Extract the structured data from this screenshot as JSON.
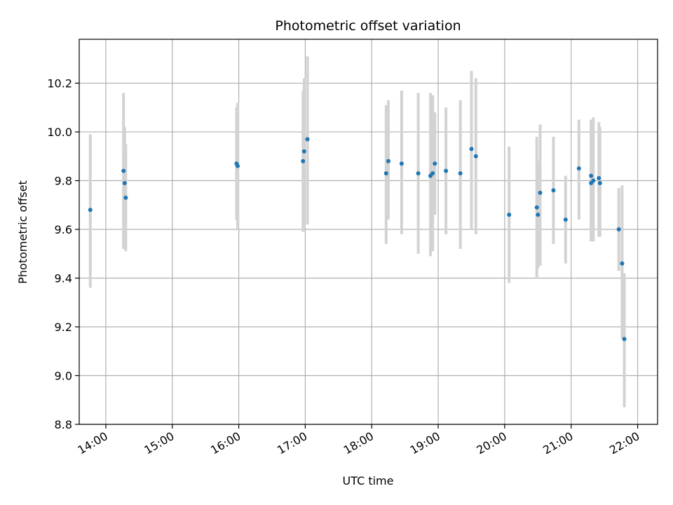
{
  "chart_data": {
    "type": "scatter",
    "title": "Photometric offset variation",
    "xlabel": "UTC time",
    "ylabel": "Photometric offset",
    "x_axis": {
      "kind": "time",
      "range": [
        "13:36",
        "22:18"
      ],
      "ticks": [
        "14:00",
        "15:00",
        "16:00",
        "17:00",
        "18:00",
        "19:00",
        "20:00",
        "21:00",
        "22:00"
      ]
    },
    "y_axis": {
      "range": [
        8.8,
        10.38
      ],
      "ticks": [
        "8.8",
        "9.0",
        "9.2",
        "9.4",
        "9.6",
        "9.8",
        "10.0",
        "10.2"
      ]
    },
    "grid": true,
    "colors": {
      "point": "#1f77b4",
      "errorbar": "#d3d3d3",
      "grid": "#b0b0b0"
    },
    "points": [
      {
        "time": "13:46",
        "y": 9.68,
        "low": 9.36,
        "high": 9.99
      },
      {
        "time": "14:16",
        "y": 9.84,
        "low": 9.52,
        "high": 10.16
      },
      {
        "time": "14:17",
        "y": 9.79,
        "low": 9.52,
        "high": 10.02
      },
      {
        "time": "14:18",
        "y": 9.73,
        "low": 9.51,
        "high": 9.95
      },
      {
        "time": "15:58",
        "y": 9.87,
        "low": 9.64,
        "high": 10.1
      },
      {
        "time": "15:59",
        "y": 9.86,
        "low": 9.6,
        "high": 10.12
      },
      {
        "time": "16:58",
        "y": 9.88,
        "low": 9.59,
        "high": 10.17
      },
      {
        "time": "16:59",
        "y": 9.92,
        "low": 9.61,
        "high": 10.22
      },
      {
        "time": "17:02",
        "y": 9.97,
        "low": 9.62,
        "high": 10.31
      },
      {
        "time": "18:13",
        "y": 9.83,
        "low": 9.54,
        "high": 10.11
      },
      {
        "time": "18:15",
        "y": 9.88,
        "low": 9.64,
        "high": 10.13
      },
      {
        "time": "18:27",
        "y": 9.87,
        "low": 9.58,
        "high": 10.17
      },
      {
        "time": "18:42",
        "y": 9.83,
        "low": 9.5,
        "high": 10.16
      },
      {
        "time": "18:53",
        "y": 9.82,
        "low": 9.49,
        "high": 10.16
      },
      {
        "time": "18:55",
        "y": 9.83,
        "low": 9.51,
        "high": 10.15
      },
      {
        "time": "18:57",
        "y": 9.87,
        "low": 9.66,
        "high": 10.08
      },
      {
        "time": "19:07",
        "y": 9.84,
        "low": 9.58,
        "high": 10.1
      },
      {
        "time": "19:20",
        "y": 9.83,
        "low": 9.52,
        "high": 10.13
      },
      {
        "time": "19:30",
        "y": 9.93,
        "low": 9.6,
        "high": 10.25
      },
      {
        "time": "19:34",
        "y": 9.9,
        "low": 9.58,
        "high": 10.22
      },
      {
        "time": "20:04",
        "y": 9.66,
        "low": 9.38,
        "high": 9.94
      },
      {
        "time": "20:29",
        "y": 9.69,
        "low": 9.4,
        "high": 9.98
      },
      {
        "time": "20:30",
        "y": 9.66,
        "low": 9.44,
        "high": 9.88
      },
      {
        "time": "20:32",
        "y": 9.75,
        "low": 9.45,
        "high": 10.03
      },
      {
        "time": "20:44",
        "y": 9.76,
        "low": 9.54,
        "high": 9.98
      },
      {
        "time": "20:55",
        "y": 9.64,
        "low": 9.46,
        "high": 9.82
      },
      {
        "time": "21:07",
        "y": 9.85,
        "low": 9.64,
        "high": 10.05
      },
      {
        "time": "21:18",
        "y": 9.82,
        "low": 9.56,
        "high": 10.05
      },
      {
        "time": "21:18",
        "y": 9.79,
        "low": 9.55,
        "high": 10.04
      },
      {
        "time": "21:20",
        "y": 9.8,
        "low": 9.55,
        "high": 10.06
      },
      {
        "time": "21:25",
        "y": 9.81,
        "low": 9.57,
        "high": 10.04
      },
      {
        "time": "21:26",
        "y": 9.79,
        "low": 9.57,
        "high": 10.02
      },
      {
        "time": "21:43",
        "y": 9.6,
        "low": 9.43,
        "high": 9.77
      },
      {
        "time": "21:46",
        "y": 9.46,
        "low": 9.15,
        "high": 9.78
      },
      {
        "time": "21:48",
        "y": 9.15,
        "low": 8.87,
        "high": 9.42
      }
    ]
  }
}
